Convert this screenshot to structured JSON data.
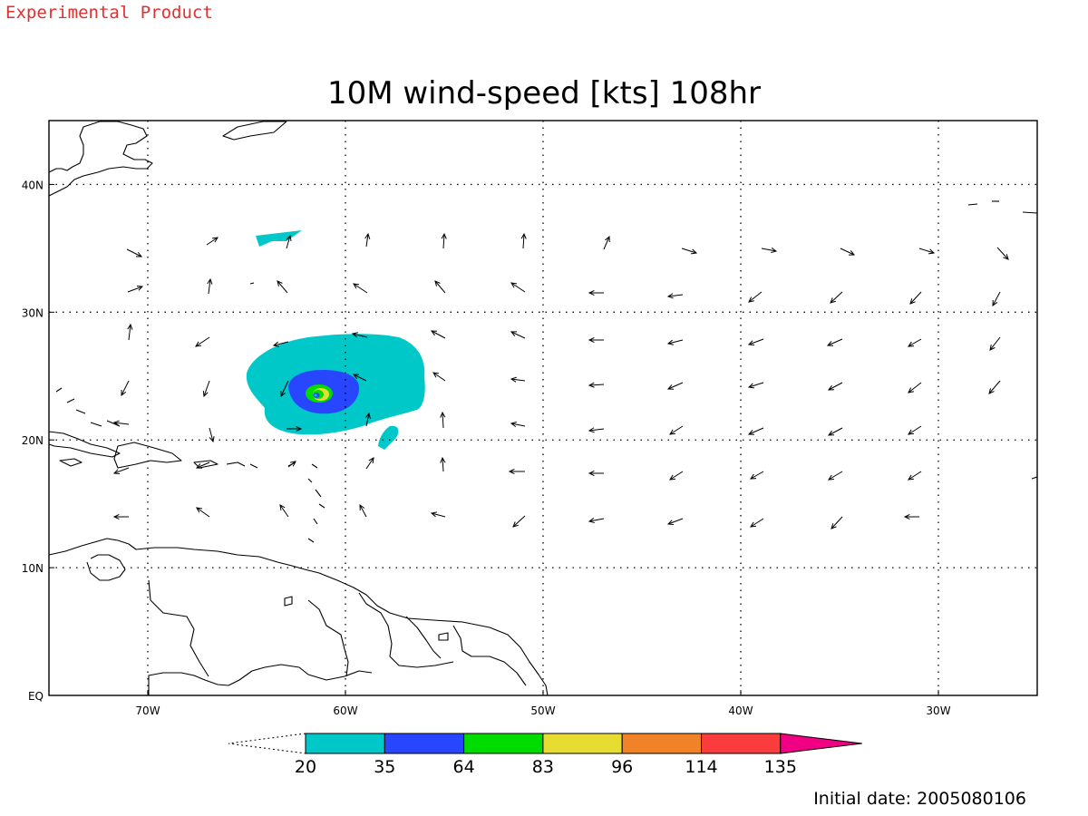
{
  "header": {
    "experimental_label": "Experimental Product"
  },
  "map": {
    "title": "10M wind-speed [kts] 108hr",
    "lon_range": [
      -75,
      -25
    ],
    "lat_range": [
      0,
      45
    ],
    "lon_ticks": [
      {
        "lon": -70,
        "label": "70W"
      },
      {
        "lon": -60,
        "label": "60W"
      },
      {
        "lon": -50,
        "label": "50W"
      },
      {
        "lon": -40,
        "label": "40W"
      },
      {
        "lon": -30,
        "label": "30W"
      }
    ],
    "lat_ticks": [
      {
        "lat": 0,
        "label": "EQ"
      },
      {
        "lat": 10,
        "label": "10N"
      },
      {
        "lat": 20,
        "label": "20N"
      },
      {
        "lat": 30,
        "label": "30N"
      },
      {
        "lat": 40,
        "label": "40N"
      }
    ],
    "grid": true,
    "gridlines_lon": [
      -70,
      -60,
      -50,
      -40,
      -30
    ],
    "gridlines_lat": [
      10,
      20,
      30,
      40
    ]
  },
  "colorbar": {
    "levels": [
      "20",
      "35",
      "64",
      "83",
      "96",
      "114",
      "135"
    ],
    "colors": [
      "#00c8c8",
      "#2846ff",
      "#00dc00",
      "#e6dc32",
      "#f08228",
      "#fa3c3c",
      "#f00082"
    ],
    "extend": "both",
    "under_color": "#ffffff"
  },
  "footer": {
    "initial_date": "Initial date: 2005080106"
  }
}
